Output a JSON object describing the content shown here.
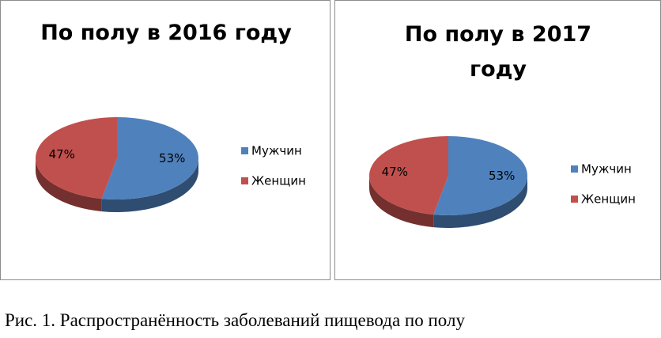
{
  "chart_data": [
    {
      "type": "pie",
      "title": "По полу в 2016 году",
      "categories": [
        "Мужчин",
        "Женщин"
      ],
      "values": [
        53,
        47
      ],
      "value_labels": [
        "53%",
        "47%"
      ],
      "colors": [
        "#4f81bd",
        "#c0504d"
      ],
      "legend": "right"
    },
    {
      "type": "pie",
      "title": "По полу в 2017 году",
      "categories": [
        "Мужчин",
        "Женщин"
      ],
      "values": [
        53,
        47
      ],
      "value_labels": [
        "53%",
        "47%"
      ],
      "colors": [
        "#4f81bd",
        "#c0504d"
      ],
      "legend": "right"
    }
  ],
  "caption": "Рис. 1. Распространённость заболеваний пищевода по полу"
}
